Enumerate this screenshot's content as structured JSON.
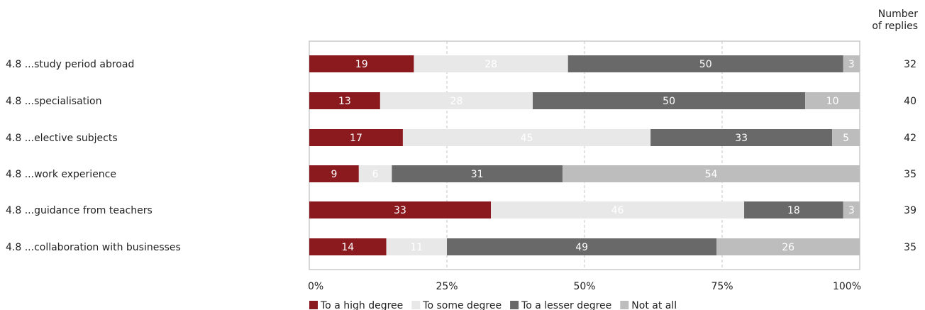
{
  "chart_data": {
    "type": "bar",
    "orientation": "horizontal",
    "stacked": true,
    "percent_scale": true,
    "categories": [
      "4.8 ...study period abroad",
      "4.8 ...specialisation",
      "4.8 ...elective subjects",
      "4.8 ...work experience",
      "4.8 ...guidance from teachers",
      "4.8 ...collaboration with businesses"
    ],
    "series": [
      {
        "name": "To a high degree",
        "color": "#8b1a1f",
        "label_color": "#ffffff",
        "values": [
          19,
          13,
          17,
          9,
          33,
          14
        ]
      },
      {
        "name": "To some degree",
        "color": "#e8e8e8",
        "label_color": "#ffffff",
        "values": [
          28,
          28,
          45,
          6,
          46,
          11
        ]
      },
      {
        "name": "To a lesser degree",
        "color": "#696969",
        "label_color": "#ffffff",
        "values": [
          50,
          50,
          33,
          31,
          18,
          49
        ]
      },
      {
        "name": "Not at all",
        "color": "#bdbdbd",
        "label_color": "#ffffff",
        "values": [
          3,
          10,
          5,
          54,
          3,
          26
        ]
      }
    ],
    "xlim": [
      0,
      100
    ],
    "x_ticks": [
      "0%",
      "25%",
      "50%",
      "75%",
      "100%"
    ],
    "grid": "vertical dashed",
    "legend_position": "bottom",
    "replies_header": [
      "Number",
      "of replies"
    ],
    "replies": [
      32,
      40,
      42,
      35,
      39,
      35
    ]
  }
}
